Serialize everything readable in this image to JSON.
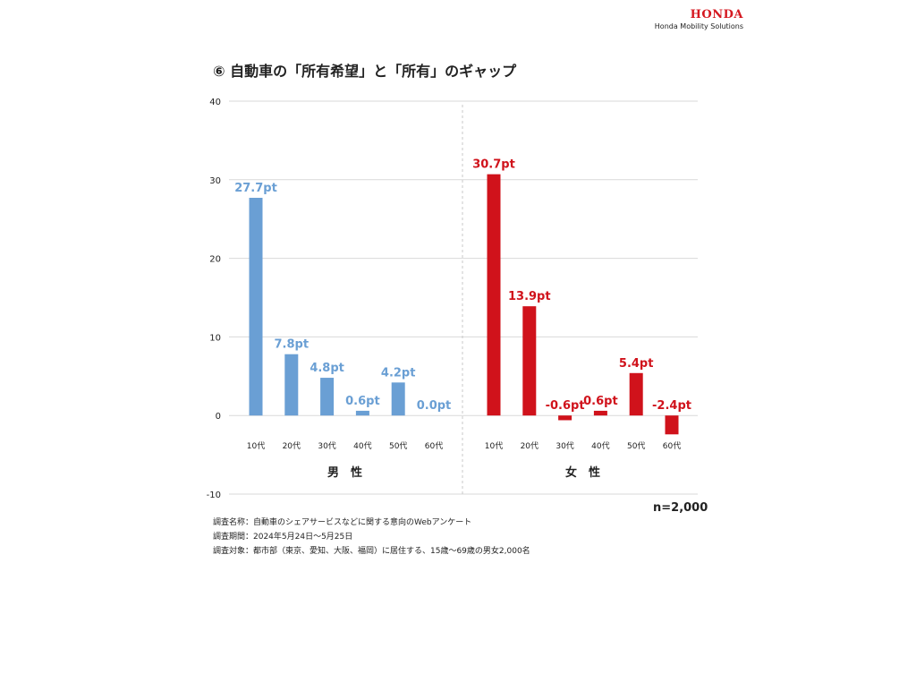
{
  "brand": {
    "logo": "HONDA",
    "subtitle": "Honda Mobility Solutions"
  },
  "title": "⑥ 自動車の「所有希望」と「所有」のギャップ",
  "sample_size": "n=2,000",
  "notes": [
    "調査名称：自動車のシェアサービスなどに関する意向のWebアンケート",
    "調査期間：2024年5月24日〜5月25日",
    "調査対象：都市部（東京、愛知、大阪、福岡）に居住する、15歳〜69歳の男女2,000名"
  ],
  "chart_data": {
    "type": "bar",
    "ylim": [
      -10,
      40
    ],
    "yticks": [
      40,
      30,
      20,
      10,
      0,
      -10
    ],
    "grid": true,
    "groups": [
      {
        "label": "男　性",
        "color": "#6a9fd4",
        "categories": [
          "10代",
          "20代",
          "30代",
          "40代",
          "50代",
          "60代"
        ],
        "values": [
          27.7,
          7.8,
          4.8,
          0.6,
          4.2,
          0.0
        ],
        "labels": [
          "27.7pt",
          "7.8pt",
          "4.8pt",
          "0.6pt",
          "4.2pt",
          "0.0pt"
        ]
      },
      {
        "label": "女　性",
        "color": "#d0121b",
        "categories": [
          "10代",
          "20代",
          "30代",
          "40代",
          "50代",
          "60代"
        ],
        "values": [
          30.7,
          13.9,
          -0.6,
          0.6,
          5.4,
          -2.4
        ],
        "labels": [
          "30.7pt",
          "13.9pt",
          "-0.6pt",
          "0.6pt",
          "5.4pt",
          "-2.4pt"
        ]
      }
    ]
  }
}
